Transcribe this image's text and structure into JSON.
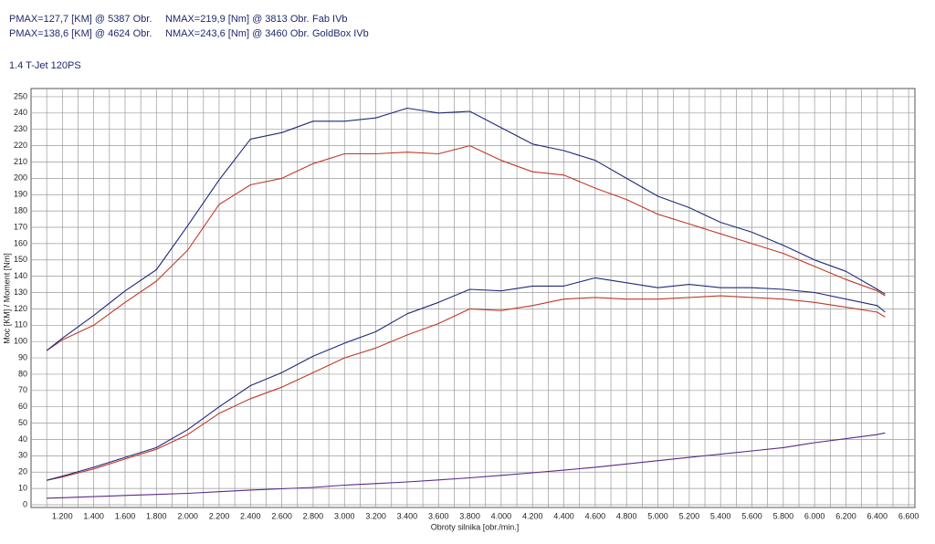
{
  "header": {
    "rows": [
      [
        "PMAX=127,7 [KM] @ 5387 Obr.",
        "NMAX=219,9 [Nm] @ 3813 Obr.",
        "Fab IVb"
      ],
      [
        "PMAX=138,6 [KM] @ 4624 Obr.",
        "NMAX=243,6 [Nm] @ 3460 Obr.",
        "GoldBox IVb"
      ]
    ]
  },
  "chart_data": {
    "type": "line",
    "title": "1.4 T-Jet 120PS",
    "x_label": "Obroty silnika [obr./min.]",
    "y_label": "Moc [KM] / Moment [Nm]",
    "x": [
      1100,
      1200,
      1400,
      1600,
      1800,
      2000,
      2200,
      2400,
      2600,
      2800,
      3000,
      3200,
      3400,
      3600,
      3800,
      4000,
      4200,
      4400,
      4600,
      4800,
      5000,
      5200,
      5400,
      5600,
      5800,
      6000,
      6200,
      6400,
      6450
    ],
    "series": [
      {
        "color": "#c0392b",
        "values": [
          94.5,
          101,
          110,
          124,
          137,
          156,
          184,
          196,
          200,
          209,
          215,
          215,
          216,
          215,
          220,
          211,
          204,
          202,
          194,
          187,
          178,
          172,
          166,
          160,
          154,
          146,
          138,
          131,
          128
        ]
      },
      {
        "color": "#1f2a7a",
        "values": [
          94.5,
          102,
          116,
          131,
          144,
          171,
          199,
          224,
          228,
          235,
          235,
          237,
          243,
          240,
          241,
          231,
          221,
          217,
          211,
          200,
          189,
          182,
          173,
          167,
          159,
          150,
          143,
          132,
          129
        ]
      },
      {
        "color": "#c0392b",
        "values": [
          15,
          17,
          22,
          28,
          34,
          43,
          56,
          65,
          72,
          81,
          90,
          96,
          104,
          111,
          120,
          119,
          122,
          126,
          127,
          126,
          126,
          127,
          128,
          127,
          126,
          124,
          121,
          118,
          115
        ]
      },
      {
        "color": "#1f2a7a",
        "values": [
          15,
          17.5,
          23,
          29,
          35,
          46,
          60,
          73,
          81,
          91,
          99,
          106,
          117,
          124,
          132,
          131,
          134,
          134,
          139,
          136,
          133,
          135,
          133,
          133,
          132,
          130,
          126,
          122,
          118
        ]
      },
      {
        "color": "#5a2a8a",
        "values": [
          4,
          4.3,
          5,
          5.7,
          6.3,
          7,
          8,
          9,
          9.8,
          10.6,
          12,
          13,
          14,
          15.2,
          16.5,
          18,
          19.6,
          21.2,
          23,
          25,
          27,
          29,
          31,
          33,
          35,
          38,
          40.5,
          43,
          44
        ]
      }
    ],
    "xlim": [
      1000,
      6640
    ],
    "ylim": [
      0,
      255
    ],
    "xticks": [
      {
        "value": 1200,
        "label": "1.200"
      },
      {
        "value": 1400,
        "label": "1.400"
      },
      {
        "value": 1600,
        "label": "1.600"
      },
      {
        "value": 1800,
        "label": "1.800"
      },
      {
        "value": 2000,
        "label": "2.000"
      },
      {
        "value": 2200,
        "label": "2.200"
      },
      {
        "value": 2400,
        "label": "2.400"
      },
      {
        "value": 2600,
        "label": "2.600"
      },
      {
        "value": 2800,
        "label": "2.800"
      },
      {
        "value": 3000,
        "label": "3.000"
      },
      {
        "value": 3200,
        "label": "3.200"
      },
      {
        "value": 3400,
        "label": "3.400"
      },
      {
        "value": 3600,
        "label": "3.600"
      },
      {
        "value": 3800,
        "label": "3.800"
      },
      {
        "value": 4000,
        "label": "4.000"
      },
      {
        "value": 4200,
        "label": "4.200"
      },
      {
        "value": 4400,
        "label": "4.400"
      },
      {
        "value": 4600,
        "label": "4.600"
      },
      {
        "value": 4800,
        "label": "4.800"
      },
      {
        "value": 5000,
        "label": "5.000"
      },
      {
        "value": 5200,
        "label": "5.200"
      },
      {
        "value": 5400,
        "label": "5.400"
      },
      {
        "value": 5600,
        "label": "5.600"
      },
      {
        "value": 5800,
        "label": "5.800"
      },
      {
        "value": 6000,
        "label": "6.000"
      },
      {
        "value": 6200,
        "label": "6.200"
      },
      {
        "value": 6400,
        "label": "6.400"
      },
      {
        "value": 6600,
        "label": "6.600"
      }
    ],
    "xminor_ticks": [
      1100,
      1300,
      1500,
      1700,
      1900,
      2100,
      2300,
      2500,
      2700,
      2900,
      3100,
      3300,
      3500,
      3700,
      3900,
      4100,
      4300,
      4500,
      4700,
      4900,
      5100,
      5300,
      5500,
      5700,
      5900,
      6100,
      6300,
      6500
    ],
    "yticks": [
      0,
      10,
      20,
      30,
      40,
      50,
      60,
      70,
      80,
      90,
      100,
      110,
      120,
      130,
      140,
      150,
      160,
      170,
      180,
      190,
      200,
      210,
      220,
      230,
      240,
      250
    ],
    "grid": true
  }
}
